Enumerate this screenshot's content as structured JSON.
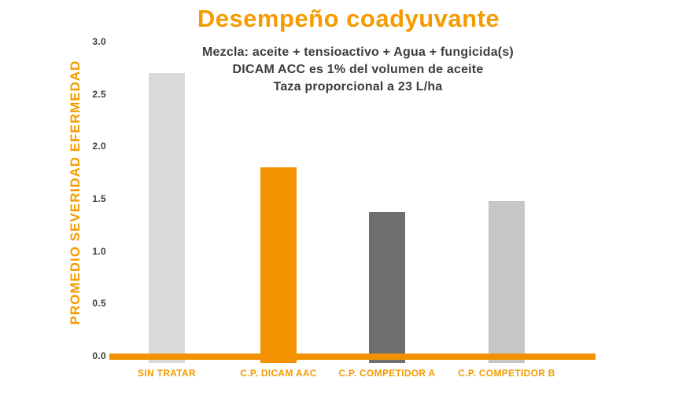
{
  "chart_data": {
    "type": "bar",
    "title": "Desempeño coadyuvante",
    "subtitle_lines": [
      "Mezcla: aceite + tensioactivo + Agua + fungicida(s)",
      "DICAM ACC es 1% del volumen de aceite",
      "Taza proporcional a 23 L/ha"
    ],
    "ylabel": "PROMEDIO SEVERIDAD EFERMEDAD",
    "xlabel": "",
    "categories": [
      "SIN TRATAR",
      "C.P. DICAM AAC",
      "C.P. COMPETIDOR A",
      "C.P. COMPETIDOR B"
    ],
    "values": [
      2.7,
      1.8,
      1.37,
      1.48
    ],
    "bar_colors": [
      "#D9D9D9",
      "#F39200",
      "#6F6F6F",
      "#C6C6C6"
    ],
    "ytick_labels": [
      "3.0",
      "2.5",
      "2.0",
      "1.5",
      "1.0",
      "0.5",
      "0.0"
    ],
    "ytick_values": [
      3.0,
      2.5,
      2.0,
      1.5,
      1.0,
      0.5,
      0.0
    ],
    "ylim": [
      0,
      3.0
    ],
    "grid": false,
    "legend": null,
    "colors": {
      "accent_orange_text": "#F49B00",
      "axis_orange": "#F39200",
      "text_dark": "#3C3C3B",
      "background": "#FFFFFF"
    }
  }
}
